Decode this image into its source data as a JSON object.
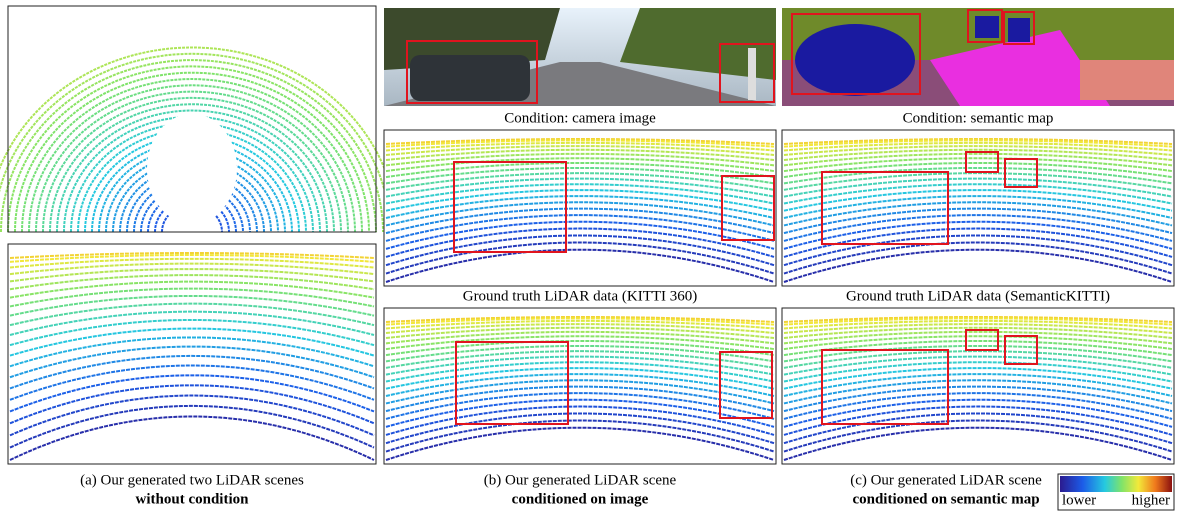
{
  "panels": {
    "a": {
      "caption": "(a) Our generated two LiDAR scenes",
      "caption_bold": "without condition"
    },
    "b": {
      "condition_label": "Condition: camera image",
      "ground_truth_label": "Ground truth LiDAR data (KITTI 360)",
      "caption": "(b) Our generated LiDAR scene",
      "caption_bold": "conditioned on image"
    },
    "c": {
      "condition_label": "Condition: semantic map",
      "ground_truth_label": "Ground truth LiDAR data (SemanticKITTI)",
      "caption": "(c) Our generated LiDAR scene",
      "caption_bold": "conditioned on semantic map"
    }
  },
  "legend": {
    "low": "lower",
    "high": "higher"
  }
}
